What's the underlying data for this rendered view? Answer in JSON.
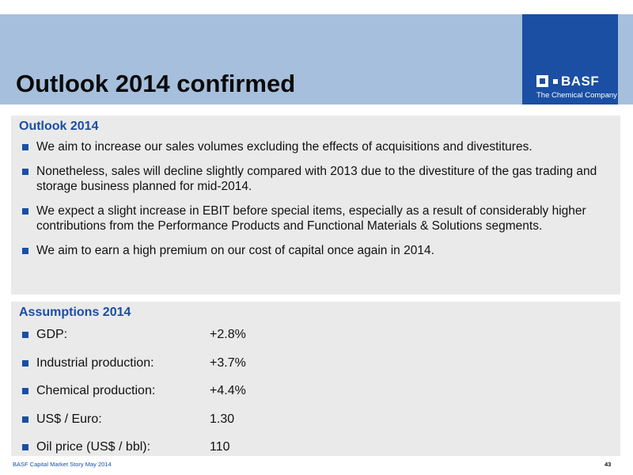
{
  "header": {
    "title": "Outlook 2014 confirmed",
    "logo_word": "BASF",
    "logo_tagline": "The Chemical Company"
  },
  "outlook": {
    "heading": "Outlook 2014",
    "bullets": [
      "We aim to increase our sales volumes excluding the effects of acquisitions and divestitures.",
      "Nonetheless, sales will decline slightly compared with 2013 due to the divestiture of the gas trading and storage business planned for mid-2014.",
      "We expect a slight increase in EBIT before special items, especially as a result of considerably higher contributions from the Performance Products and Functional Materials & Solutions segments.",
      "We aim to earn a high premium on our cost of capital once again in 2014."
    ]
  },
  "assumptions": {
    "heading": "Assumptions 2014",
    "rows": [
      {
        "label": "GDP:",
        "value": "+2.8%"
      },
      {
        "label": "Industrial production:",
        "value": "+3.7%"
      },
      {
        "label": "Chemical production:",
        "value": "+4.4%"
      },
      {
        "label": "US$ / Euro:",
        "value": "1.30"
      },
      {
        "label": "Oil price (US$ / bbl):",
        "value": "110"
      }
    ]
  },
  "footer": {
    "text": "BASF Capital Market Story May 2014",
    "page_number": "43"
  },
  "colors": {
    "header_band": "#a6bfdc",
    "brand_blue": "#1a4fa3",
    "panel_bg": "#eaeaea"
  }
}
